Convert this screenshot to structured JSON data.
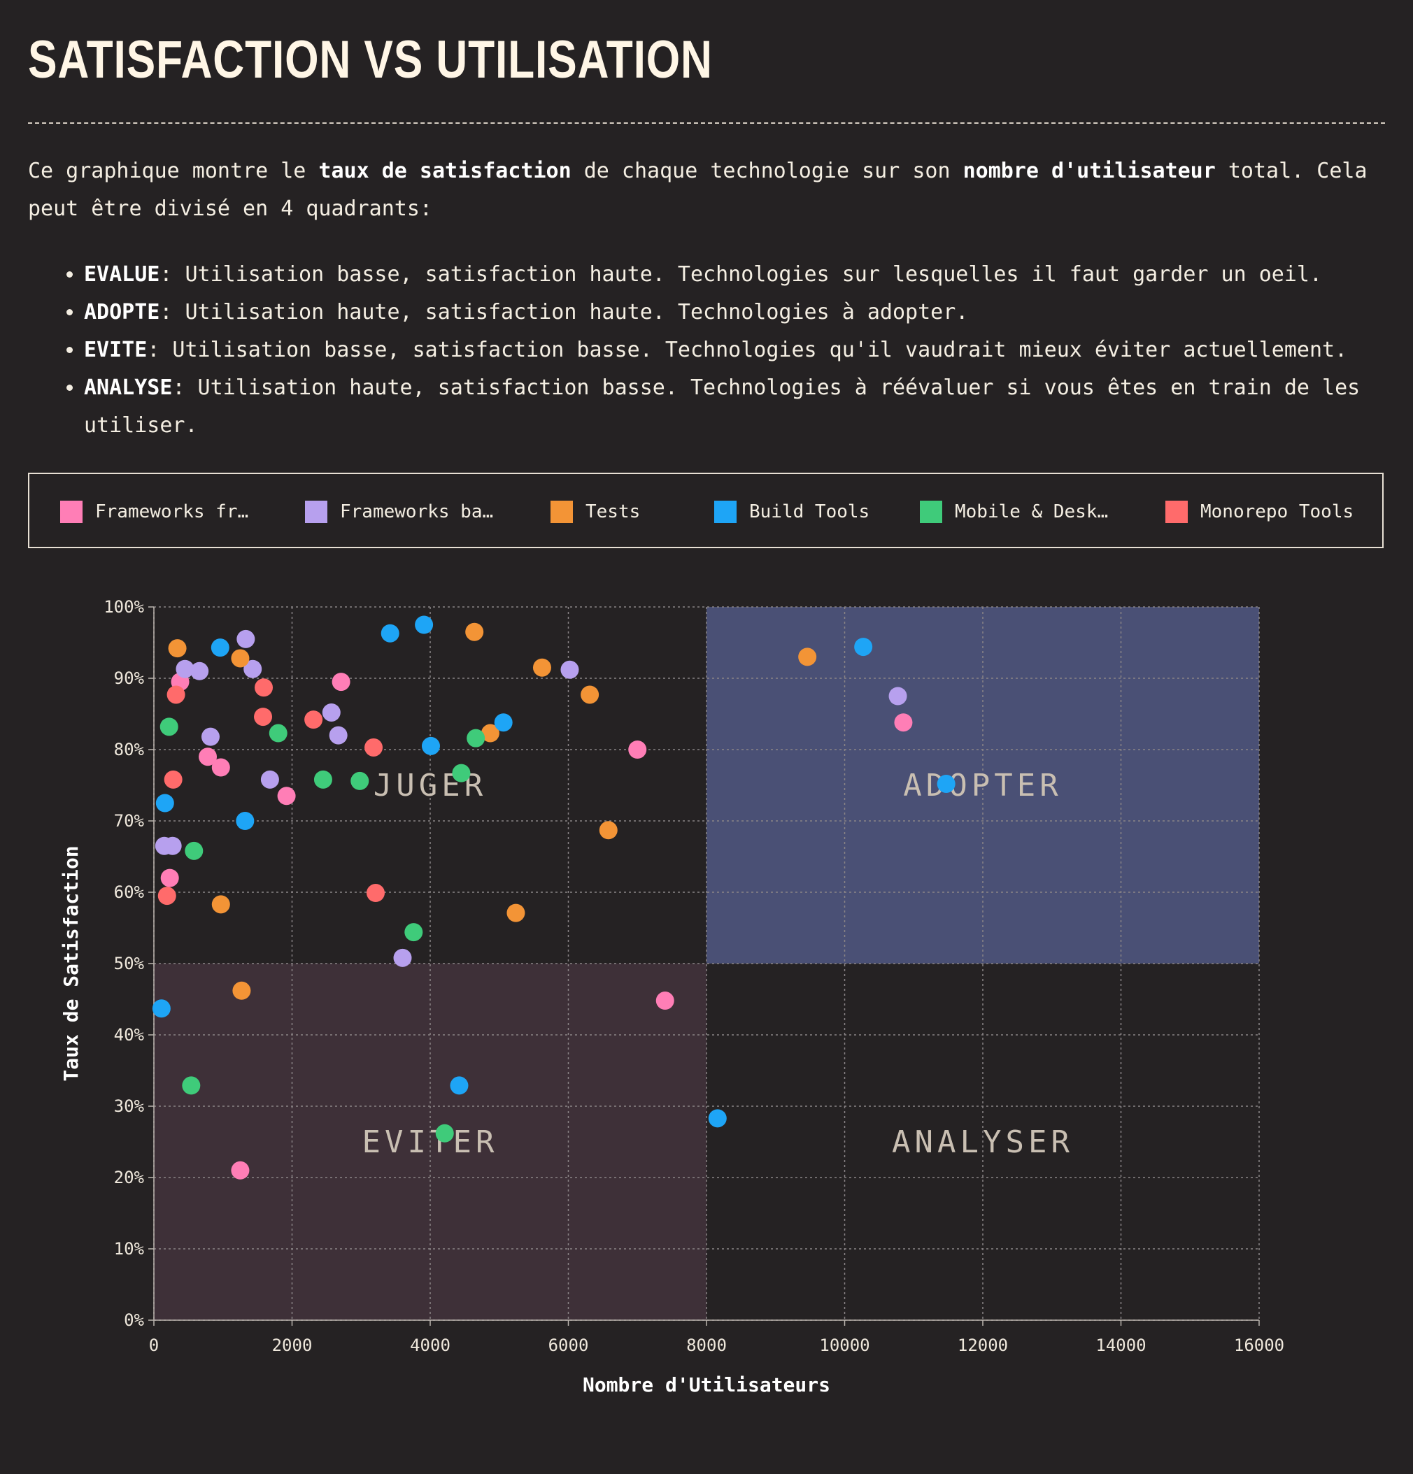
{
  "header": {
    "title": "SATISFACTION VS UTILISATION"
  },
  "intro": {
    "p1": "Ce graphique montre le ",
    "b1": "taux de satisfaction",
    "p2": " de chaque technologie sur son ",
    "b2": "nombre d'utilisateur",
    "p3": " total. Cela peut être divisé en 4 quadrants:"
  },
  "quadrants": [
    {
      "name": "EVALUE",
      "text": ": Utilisation basse, satisfaction haute. Technologies sur lesquelles il faut garder un oeil."
    },
    {
      "name": "ADOPTE",
      "text": ": Utilisation haute, satisfaction haute. Technologies à adopter."
    },
    {
      "name": "EVITE",
      "text": ": Utilisation basse, satisfaction basse. Technologies qu'il vaudrait mieux éviter actuellement."
    },
    {
      "name": "ANALYSE",
      "text": ": Utilisation haute, satisfaction basse. Technologies à réévaluer si vous êtes en train de les utiliser."
    }
  ],
  "legend": [
    {
      "label": "Frameworks fr…",
      "color": "#ff7eb6"
    },
    {
      "label": "Frameworks ba…",
      "color": "#b7a0ee"
    },
    {
      "label": "Tests",
      "color": "#f39436"
    },
    {
      "label": "Build Tools",
      "color": "#1ea5f6"
    },
    {
      "label": "Mobile & Desk…",
      "color": "#3fcb7a"
    },
    {
      "label": "Monorepo Tools",
      "color": "#ff6b6b"
    }
  ],
  "chart_data": {
    "type": "scatter",
    "xlabel": "Nombre d'Utilisateurs",
    "ylabel": "Taux de Satisfaction",
    "xlim": [
      0,
      16000
    ],
    "ylim": [
      0,
      100
    ],
    "xticks": [
      "0",
      "2000",
      "4000",
      "6000",
      "8000",
      "10000",
      "12000",
      "14000",
      "16000"
    ],
    "yticks": [
      "0%",
      "10%",
      "20%",
      "30%",
      "40%",
      "50%",
      "60%",
      "70%",
      "80%",
      "90%",
      "100%"
    ],
    "grid": true,
    "quadrant_labels": [
      {
        "label": "JUGER",
        "x": 4000,
        "y": 75
      },
      {
        "label": "ADOPTER",
        "x": 12000,
        "y": 75
      },
      {
        "label": "EVITER",
        "x": 4000,
        "y": 25
      },
      {
        "label": "ANALYSER",
        "x": 12000,
        "y": 25
      }
    ],
    "quadrant_fills": [
      {
        "x0": 8000,
        "x1": 16000,
        "y0": 50,
        "y1": 100,
        "color": "#4a5075"
      },
      {
        "x0": 0,
        "x1": 8000,
        "y0": 0,
        "y1": 50,
        "color": "#3e3038"
      }
    ],
    "series": [
      {
        "name": "Frameworks fr…",
        "color": "#ff7eb6",
        "points": [
          [
            380,
            89.5
          ],
          [
            780,
            79
          ],
          [
            970,
            77.5
          ],
          [
            1920,
            73.5
          ],
          [
            2710,
            89.5
          ],
          [
            7000,
            80
          ],
          [
            10850,
            83.8
          ],
          [
            230,
            62
          ],
          [
            7400,
            44.8
          ],
          [
            1250,
            21
          ]
        ]
      },
      {
        "name": "Frameworks ba…",
        "color": "#b7a0ee",
        "points": [
          [
            450,
            91.3
          ],
          [
            660,
            91
          ],
          [
            820,
            81.8
          ],
          [
            1330,
            95.5
          ],
          [
            1430,
            91.3
          ],
          [
            1680,
            75.8
          ],
          [
            2570,
            85.2
          ],
          [
            2670,
            82
          ],
          [
            6020,
            91.2
          ],
          [
            10770,
            87.5
          ],
          [
            150,
            66.5
          ],
          [
            270,
            66.5
          ],
          [
            3600,
            50.8
          ]
        ]
      },
      {
        "name": "Tests",
        "color": "#f39436",
        "points": [
          [
            340,
            94.2
          ],
          [
            1250,
            92.8
          ],
          [
            4640,
            96.5
          ],
          [
            5620,
            91.5
          ],
          [
            6310,
            87.7
          ],
          [
            4870,
            82.3
          ],
          [
            9460,
            93
          ],
          [
            6580,
            68.7
          ],
          [
            970,
            58.3
          ],
          [
            5240,
            57.1
          ],
          [
            1270,
            46.2
          ]
        ]
      },
      {
        "name": "Build Tools",
        "color": "#1ea5f6",
        "points": [
          [
            960,
            94.3
          ],
          [
            3420,
            96.3
          ],
          [
            3910,
            97.5
          ],
          [
            4010,
            80.5
          ],
          [
            5060,
            83.8
          ],
          [
            1320,
            70
          ],
          [
            160,
            72.5
          ],
          [
            10270,
            94.4
          ],
          [
            11470,
            75.2
          ],
          [
            110,
            43.7
          ],
          [
            4420,
            32.9
          ],
          [
            8160,
            28.3
          ]
        ]
      },
      {
        "name": "Mobile & Desk…",
        "color": "#3fcb7a",
        "points": [
          [
            220,
            83.2
          ],
          [
            1800,
            82.3
          ],
          [
            2450,
            75.8
          ],
          [
            2980,
            75.6
          ],
          [
            4450,
            76.7
          ],
          [
            4660,
            81.6
          ],
          [
            580,
            65.8
          ],
          [
            3760,
            54.4
          ],
          [
            540,
            32.9
          ],
          [
            4210,
            26.2
          ]
        ]
      },
      {
        "name": "Monorepo Tools",
        "color": "#ff6b6b",
        "points": [
          [
            320,
            87.7
          ],
          [
            1590,
            88.7
          ],
          [
            1580,
            84.6
          ],
          [
            2310,
            84.2
          ],
          [
            3180,
            80.3
          ],
          [
            280,
            75.8
          ],
          [
            190,
            59.5
          ],
          [
            3210,
            59.9
          ]
        ]
      }
    ]
  }
}
